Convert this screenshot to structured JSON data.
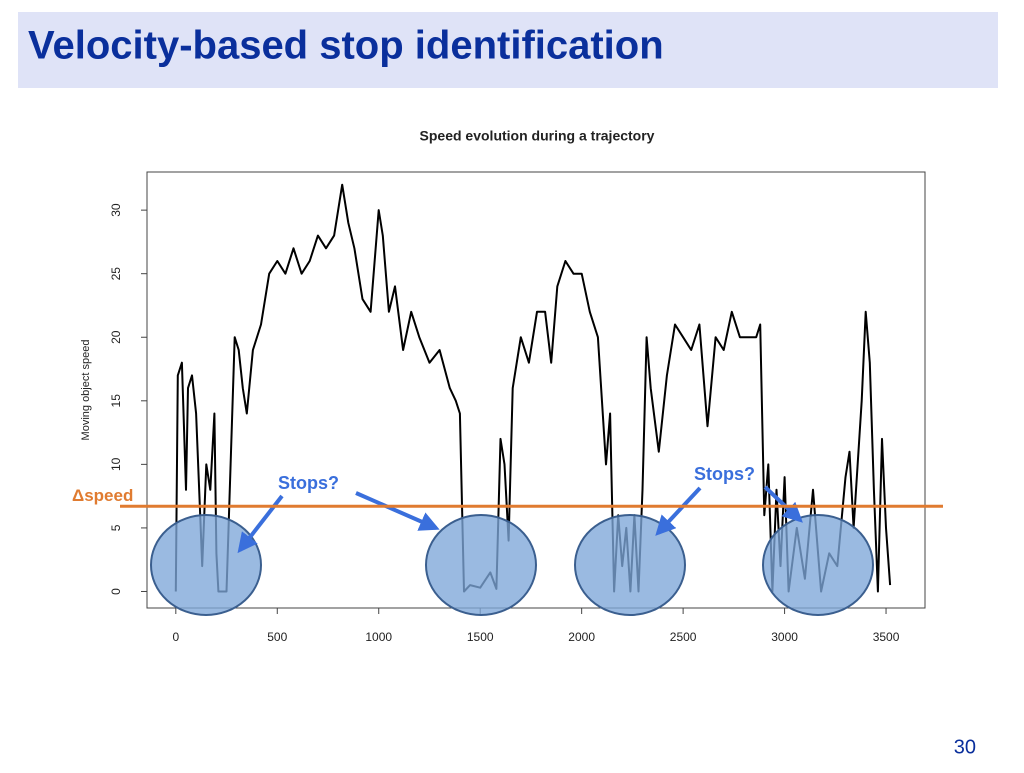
{
  "slide_title": "Velocity-based stop identification",
  "page_number": "30",
  "chart_data": {
    "type": "line",
    "title": "Speed evolution during a trajectory",
    "ylabel": "Moving object speed",
    "x": [
      0,
      10,
      30,
      50,
      60,
      80,
      100,
      120,
      130,
      150,
      170,
      190,
      200,
      210,
      250,
      270,
      290,
      310,
      330,
      350,
      380,
      420,
      460,
      500,
      540,
      580,
      620,
      660,
      700,
      740,
      780,
      820,
      850,
      880,
      920,
      960,
      1000,
      1020,
      1050,
      1080,
      1120,
      1160,
      1200,
      1250,
      1300,
      1350,
      1380,
      1400,
      1420,
      1450,
      1500,
      1550,
      1580,
      1600,
      1620,
      1640,
      1660,
      1700,
      1740,
      1780,
      1820,
      1850,
      1880,
      1920,
      1960,
      2000,
      2040,
      2080,
      2120,
      2140,
      2160,
      2180,
      2200,
      2220,
      2240,
      2260,
      2280,
      2300,
      2320,
      2340,
      2380,
      2420,
      2460,
      2500,
      2540,
      2580,
      2620,
      2660,
      2700,
      2740,
      2780,
      2820,
      2860,
      2880,
      2900,
      2920,
      2940,
      2960,
      2980,
      3000,
      3020,
      3060,
      3100,
      3140,
      3180,
      3220,
      3260,
      3300,
      3320,
      3340,
      3380,
      3400,
      3420,
      3440,
      3460,
      3480,
      3500,
      3520
    ],
    "values": [
      0,
      17,
      18,
      8,
      16,
      17,
      14,
      6,
      2,
      10,
      8,
      14,
      3,
      0,
      0,
      10,
      20,
      19,
      16,
      14,
      19,
      21,
      25,
      26,
      25,
      27,
      25,
      26,
      28,
      27,
      28,
      32,
      29,
      27,
      23,
      22,
      30,
      28,
      22,
      24,
      19,
      22,
      20,
      18,
      19,
      16,
      15,
      14,
      0,
      0.5,
      0.3,
      1.5,
      0.2,
      12,
      10,
      4,
      16,
      20,
      18,
      22,
      22,
      18,
      24,
      26,
      25,
      25,
      22,
      20,
      10,
      14,
      0,
      6,
      2,
      5,
      0,
      6,
      0,
      8,
      20,
      16,
      11,
      17,
      21,
      20,
      19,
      21,
      13,
      20,
      19,
      22,
      20,
      20,
      20,
      21,
      6,
      10,
      0,
      8,
      2,
      9,
      0,
      5,
      1,
      8,
      0,
      3,
      2,
      9,
      11,
      5,
      15,
      22,
      18,
      8,
      0,
      12,
      5,
      0.5
    ],
    "color": "#000000",
    "xlim": [
      -142,
      3692
    ],
    "ylim": [
      -1.3,
      33
    ],
    "xticks": [
      0,
      500,
      1000,
      1500,
      2000,
      2500,
      3000,
      3500
    ],
    "yticks": [
      0,
      5,
      10,
      15,
      20,
      25,
      30
    ],
    "threshold": {
      "value": 6.7,
      "label": "Δspeed",
      "color": "#e07b30"
    },
    "annotations": [
      "Stops?",
      "Stops?"
    ]
  }
}
